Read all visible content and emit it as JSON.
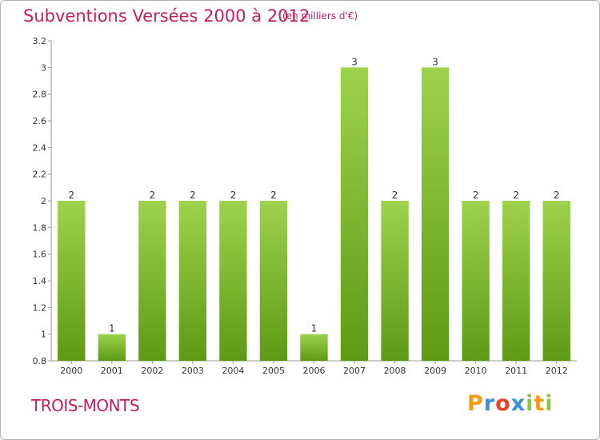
{
  "header": {
    "title": "Subventions Versées 2000 à 2012",
    "unit": "(en milliers d'€)"
  },
  "footer": {
    "commune": "TROIS-MONTS",
    "logo_letters": [
      "P",
      "r",
      "o",
      "x",
      "i",
      "t",
      "i"
    ],
    "logo_colors": [
      "#f39c12",
      "#3a8fd9",
      "#e2432b",
      "#3a8fd9",
      "#8cc63f",
      "#f39c12",
      "#8cc63f"
    ]
  },
  "colors": {
    "text_accent": "#c31d64",
    "bar_top": "#9dd24c",
    "bar_bottom": "#5e9a14",
    "axis": "#999999"
  },
  "chart_data": {
    "type": "bar",
    "title": "Subventions Versées 2000 à 2012",
    "subtitle": "(en milliers d'€)",
    "xlabel": "",
    "ylabel": "",
    "categories": [
      "2000",
      "2001",
      "2002",
      "2003",
      "2004",
      "2005",
      "2006",
      "2007",
      "2008",
      "2009",
      "2010",
      "2011",
      "2012"
    ],
    "values": [
      2,
      1,
      2,
      2,
      2,
      2,
      1,
      3,
      2,
      3,
      2,
      2,
      2
    ],
    "bar_base": 0.8,
    "ylim": [
      0.8,
      3.2
    ],
    "yticks": [
      0.8,
      1,
      1.2,
      1.4,
      1.6,
      1.8,
      2,
      2.2,
      2.4,
      2.6,
      2.8,
      3,
      3.2
    ],
    "yticks_labels": [
      "0.8",
      "1",
      "1.2",
      "1.4",
      "1.6",
      "1.8",
      "2",
      "2.2",
      "2.4",
      "2.6",
      "2.8",
      "3",
      "3.2"
    ],
    "grid": false,
    "legend": "none"
  }
}
